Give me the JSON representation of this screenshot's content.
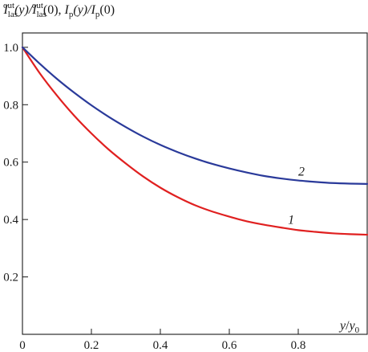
{
  "chart_data": {
    "type": "line",
    "ylabel_parts": {
      "num_main": "I",
      "num_sub": "las",
      "num_sup": "out",
      "num_arg": "(y)/",
      "den_main": "I",
      "den_sub": "las",
      "den_sup": "out",
      "den_arg": "(0), ",
      "p1_main": "I",
      "p1_sub": "p",
      "p1_arg": "(y)/",
      "p2_main": "I",
      "p2_sub": "p",
      "p2_arg": "(0)"
    },
    "xlabel_parts": {
      "a": "y",
      "b": "/",
      "c": "y",
      "c_sub": "0"
    },
    "xlim": [
      0,
      1.0
    ],
    "ylim": [
      0,
      1.05
    ],
    "x_ticks": [
      0,
      0.2,
      0.4,
      0.6,
      0.8
    ],
    "x_tick_labels": [
      "0",
      "0.2",
      "0.4",
      "0.6",
      "0.8"
    ],
    "y_ticks": [
      0.2,
      0.4,
      0.6,
      0.8,
      1.0
    ],
    "y_tick_labels": [
      "0.2",
      "0.4",
      "0.6",
      "0.8",
      "1.0"
    ],
    "grid": false,
    "series": [
      {
        "name": "1",
        "color": "#e02020",
        "x": [
          0,
          0.05,
          0.1,
          0.15,
          0.2,
          0.25,
          0.3,
          0.35,
          0.4,
          0.45,
          0.5,
          0.55,
          0.6,
          0.65,
          0.7,
          0.75,
          0.8,
          0.85,
          0.9,
          0.95,
          1.0
        ],
        "y": [
          1.0,
          0.91,
          0.832,
          0.762,
          0.7,
          0.644,
          0.595,
          0.55,
          0.511,
          0.478,
          0.45,
          0.428,
          0.41,
          0.394,
          0.382,
          0.372,
          0.363,
          0.357,
          0.352,
          0.349,
          0.347
        ]
      },
      {
        "name": "2",
        "color": "#2a3a9a",
        "x": [
          0,
          0.05,
          0.1,
          0.15,
          0.2,
          0.25,
          0.3,
          0.35,
          0.4,
          0.45,
          0.5,
          0.55,
          0.6,
          0.65,
          0.7,
          0.75,
          0.8,
          0.85,
          0.9,
          0.95,
          1.0
        ],
        "y": [
          1.0,
          0.943,
          0.89,
          0.842,
          0.798,
          0.758,
          0.722,
          0.689,
          0.66,
          0.635,
          0.613,
          0.594,
          0.578,
          0.564,
          0.552,
          0.543,
          0.536,
          0.531,
          0.527,
          0.525,
          0.524
        ]
      }
    ]
  }
}
